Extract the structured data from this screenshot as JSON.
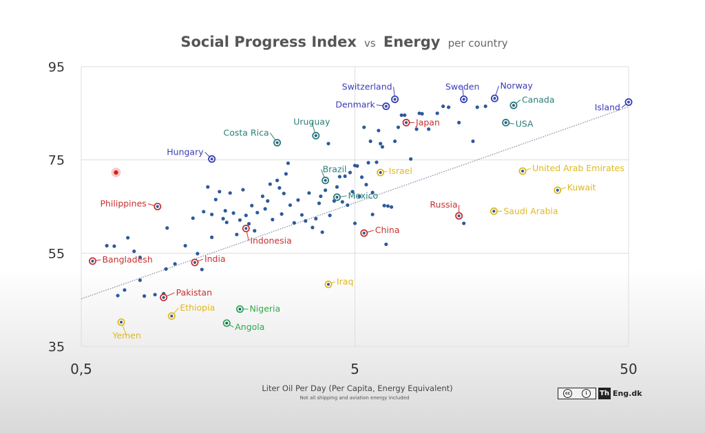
{
  "chart_data": {
    "type": "scatter",
    "title": {
      "part1": "Social Progress Index",
      "part2": "vs",
      "part3": "Energy",
      "part4": "per country"
    },
    "xlabel": "Liter Oil Per Day (Per Capita, Energy Equivalent)",
    "xnote": "Not all shipping and aviation energy included",
    "x_scale": "log",
    "xlim": [
      0.5,
      50
    ],
    "ylim": [
      35,
      95
    ],
    "xticks": [
      {
        "value": 0.5,
        "label": "0,5"
      },
      {
        "value": 5,
        "label": "5"
      },
      {
        "value": 50,
        "label": "50"
      }
    ],
    "yticks": [
      {
        "value": 35,
        "label": "35"
      },
      {
        "value": 55,
        "label": "55"
      },
      {
        "value": 75,
        "label": "75"
      },
      {
        "value": 95,
        "label": "95"
      }
    ],
    "colors": {
      "point": "#2e5a9a",
      "trend": "#8a8fa8",
      "grid": "#dddddd",
      "blue": "#3a3ab8",
      "teal": "#2a7d78",
      "red": "#c83030",
      "yellow": "#e0b81c",
      "green": "#2ea84a"
    },
    "trendline": {
      "x": [
        0.5,
        50
      ],
      "y": [
        45.2,
        86.4
      ]
    },
    "labeled_points": [
      {
        "label": "Switzerland",
        "x": 7.0,
        "y": 88,
        "group": "blue"
      },
      {
        "label": "Sweden",
        "x": 12.5,
        "y": 88,
        "group": "blue"
      },
      {
        "label": "Norway",
        "x": 16.2,
        "y": 88.2,
        "group": "blue"
      },
      {
        "label": "Denmark",
        "x": 6.5,
        "y": 86.5,
        "group": "blue"
      },
      {
        "label": "Canada",
        "x": 19.0,
        "y": 86.7,
        "group": "teal"
      },
      {
        "label": "Island",
        "x": 50.0,
        "y": 87.4,
        "group": "blue"
      },
      {
        "label": "Japan",
        "x": 7.7,
        "y": 83,
        "group": "red"
      },
      {
        "label": "USA",
        "x": 17.8,
        "y": 83,
        "group": "teal"
      },
      {
        "label": "Uruguay",
        "x": 3.6,
        "y": 80.2,
        "group": "teal"
      },
      {
        "label": "Costa Rica",
        "x": 2.6,
        "y": 78.7,
        "group": "teal"
      },
      {
        "label": "Hungary",
        "x": 1.5,
        "y": 75.2,
        "group": "blue"
      },
      {
        "label": "Brazil",
        "x": 3.9,
        "y": 70.6,
        "group": "teal"
      },
      {
        "label": "Israel",
        "x": 6.2,
        "y": 72.3,
        "group": "yellow"
      },
      {
        "label": "United Arab Emirates",
        "x": 20.5,
        "y": 72.6,
        "group": "yellow"
      },
      {
        "label": "Kuwait",
        "x": 27.5,
        "y": 68.5,
        "group": "yellow"
      },
      {
        "label": "Mexico",
        "x": 4.3,
        "y": 67,
        "group": "teal"
      },
      {
        "label": "Philippines",
        "x": 0.95,
        "y": 65,
        "group": "red"
      },
      {
        "label": "Russia",
        "x": 12.0,
        "y": 63,
        "group": "red"
      },
      {
        "label": "Saudi Arabia",
        "x": 16.1,
        "y": 64,
        "group": "yellow"
      },
      {
        "label": "Indonesia",
        "x": 2.0,
        "y": 60.3,
        "group": "red"
      },
      {
        "label": "China",
        "x": 5.4,
        "y": 59.3,
        "group": "red"
      },
      {
        "label": "Bangladesh",
        "x": 0.55,
        "y": 53.3,
        "group": "red"
      },
      {
        "label": "India",
        "x": 1.3,
        "y": 53,
        "group": "red"
      },
      {
        "label": "Iraq",
        "x": 4.0,
        "y": 48.3,
        "group": "yellow"
      },
      {
        "label": "Pakistan",
        "x": 1.0,
        "y": 45.5,
        "group": "red"
      },
      {
        "label": "Nigeria",
        "x": 1.9,
        "y": 43,
        "group": "green"
      },
      {
        "label": "Ethiopia",
        "x": 1.07,
        "y": 41.5,
        "group": "yellow"
      },
      {
        "label": "Angola",
        "x": 1.7,
        "y": 40,
        "group": "green"
      },
      {
        "label": "Yemen",
        "x": 0.7,
        "y": 40.2,
        "group": "yellow"
      }
    ],
    "highlighted_point": {
      "x": 0.67,
      "y": 72.3
    },
    "points": [
      {
        "x": 0.62,
        "y": 56.6
      },
      {
        "x": 0.68,
        "y": 45.9
      },
      {
        "x": 0.72,
        "y": 47.1
      },
      {
        "x": 0.74,
        "y": 58.3
      },
      {
        "x": 0.78,
        "y": 55.4
      },
      {
        "x": 0.82,
        "y": 54.1
      },
      {
        "x": 0.82,
        "y": 49.2
      },
      {
        "x": 0.85,
        "y": 45.8
      },
      {
        "x": 0.66,
        "y": 56.5
      },
      {
        "x": 0.93,
        "y": 46.1
      },
      {
        "x": 1.0,
        "y": 46.3
      },
      {
        "x": 1.02,
        "y": 51.6
      },
      {
        "x": 1.03,
        "y": 60.4
      },
      {
        "x": 1.1,
        "y": 52.7
      },
      {
        "x": 1.2,
        "y": 56.6
      },
      {
        "x": 1.28,
        "y": 62.5
      },
      {
        "x": 1.33,
        "y": 54.9
      },
      {
        "x": 1.38,
        "y": 51.5
      },
      {
        "x": 1.4,
        "y": 63.9
      },
      {
        "x": 1.45,
        "y": 69.2
      },
      {
        "x": 1.5,
        "y": 63.3
      },
      {
        "x": 1.5,
        "y": 58.4
      },
      {
        "x": 1.55,
        "y": 66.5
      },
      {
        "x": 1.6,
        "y": 68.2
      },
      {
        "x": 1.65,
        "y": 62.4
      },
      {
        "x": 1.68,
        "y": 64.1
      },
      {
        "x": 1.7,
        "y": 61.6
      },
      {
        "x": 1.75,
        "y": 67.9
      },
      {
        "x": 1.8,
        "y": 63.6
      },
      {
        "x": 1.85,
        "y": 59.0
      },
      {
        "x": 1.9,
        "y": 62.1
      },
      {
        "x": 1.95,
        "y": 68.6
      },
      {
        "x": 2.0,
        "y": 63.1
      },
      {
        "x": 2.05,
        "y": 61.3
      },
      {
        "x": 2.1,
        "y": 65.2
      },
      {
        "x": 2.15,
        "y": 59.8
      },
      {
        "x": 2.2,
        "y": 63.7
      },
      {
        "x": 2.3,
        "y": 67.2
      },
      {
        "x": 2.35,
        "y": 64.5
      },
      {
        "x": 2.4,
        "y": 66.2
      },
      {
        "x": 2.45,
        "y": 69.8
      },
      {
        "x": 2.5,
        "y": 62.2
      },
      {
        "x": 2.6,
        "y": 70.6
      },
      {
        "x": 2.65,
        "y": 69.0
      },
      {
        "x": 2.7,
        "y": 63.4
      },
      {
        "x": 2.75,
        "y": 67.8
      },
      {
        "x": 2.8,
        "y": 72.0
      },
      {
        "x": 2.85,
        "y": 74.3
      },
      {
        "x": 2.9,
        "y": 65.3
      },
      {
        "x": 3.0,
        "y": 61.5
      },
      {
        "x": 3.1,
        "y": 66.4
      },
      {
        "x": 3.2,
        "y": 63.2
      },
      {
        "x": 3.3,
        "y": 61.9
      },
      {
        "x": 3.4,
        "y": 67.9
      },
      {
        "x": 3.5,
        "y": 60.5
      },
      {
        "x": 3.6,
        "y": 62.4
      },
      {
        "x": 3.7,
        "y": 65.7
      },
      {
        "x": 3.75,
        "y": 67.2
      },
      {
        "x": 3.8,
        "y": 59.5
      },
      {
        "x": 3.9,
        "y": 68.5
      },
      {
        "x": 4.0,
        "y": 78.5
      },
      {
        "x": 4.05,
        "y": 63.1
      },
      {
        "x": 4.2,
        "y": 66.2
      },
      {
        "x": 4.3,
        "y": 69.2
      },
      {
        "x": 4.4,
        "y": 71.4
      },
      {
        "x": 4.5,
        "y": 66.0
      },
      {
        "x": 4.6,
        "y": 71.5
      },
      {
        "x": 4.7,
        "y": 65.3
      },
      {
        "x": 4.8,
        "y": 72.3
      },
      {
        "x": 4.9,
        "y": 68.2
      },
      {
        "x": 5.0,
        "y": 73.8
      },
      {
        "x": 5.0,
        "y": 61.4
      },
      {
        "x": 5.1,
        "y": 73.7
      },
      {
        "x": 5.2,
        "y": 67.2
      },
      {
        "x": 5.3,
        "y": 71.3
      },
      {
        "x": 5.4,
        "y": 82.0
      },
      {
        "x": 5.5,
        "y": 69.7
      },
      {
        "x": 5.6,
        "y": 74.4
      },
      {
        "x": 5.7,
        "y": 79.0
      },
      {
        "x": 5.8,
        "y": 68.0
      },
      {
        "x": 5.8,
        "y": 63.3
      },
      {
        "x": 6.0,
        "y": 74.5
      },
      {
        "x": 6.1,
        "y": 81.3
      },
      {
        "x": 6.2,
        "y": 78.5
      },
      {
        "x": 6.3,
        "y": 77.8
      },
      {
        "x": 6.4,
        "y": 65.2
      },
      {
        "x": 6.6,
        "y": 65.1
      },
      {
        "x": 6.8,
        "y": 64.9
      },
      {
        "x": 6.5,
        "y": 56.9
      },
      {
        "x": 7.0,
        "y": 79.0
      },
      {
        "x": 7.2,
        "y": 82.0
      },
      {
        "x": 7.4,
        "y": 84.6
      },
      {
        "x": 7.6,
        "y": 84.6
      },
      {
        "x": 8.0,
        "y": 75.2
      },
      {
        "x": 8.4,
        "y": 81.6
      },
      {
        "x": 8.6,
        "y": 85.0
      },
      {
        "x": 8.8,
        "y": 84.9
      },
      {
        "x": 9.3,
        "y": 81.6
      },
      {
        "x": 10.0,
        "y": 85.0
      },
      {
        "x": 10.5,
        "y": 86.5
      },
      {
        "x": 11.0,
        "y": 86.3
      },
      {
        "x": 12.0,
        "y": 83.0
      },
      {
        "x": 12.5,
        "y": 61.4
      },
      {
        "x": 13.5,
        "y": 79.0
      },
      {
        "x": 14.0,
        "y": 86.3
      },
      {
        "x": 15.0,
        "y": 86.5
      }
    ]
  },
  "brand": {
    "license_cc": "cc",
    "license_by": "i",
    "logo_mark": "Th",
    "site": "Eng.dk"
  }
}
